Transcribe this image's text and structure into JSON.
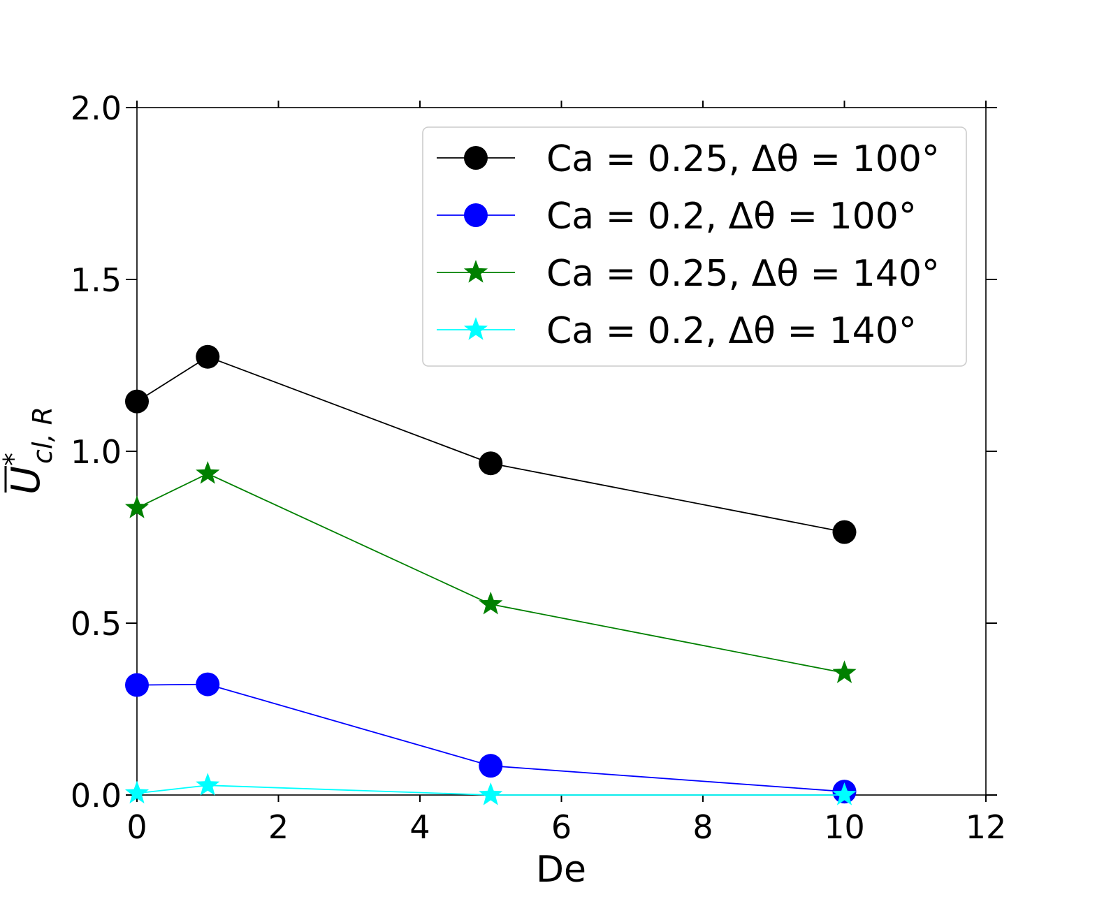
{
  "chart_data": {
    "type": "line",
    "title": "",
    "xlabel": "De",
    "ylabel": {
      "base": "U",
      "superscript": "*",
      "subscript": "cl, R"
    },
    "xlim": [
      0,
      12
    ],
    "ylim": [
      0,
      2
    ],
    "xticks": [
      0,
      2,
      4,
      6,
      8,
      10,
      12
    ],
    "yticks": [
      0,
      0.5,
      1,
      1.5,
      2
    ],
    "xtick_labels": [
      "0",
      "2",
      "4",
      "6",
      "8",
      "10",
      "12"
    ],
    "ytick_labels": [
      "0.0",
      "0.5",
      "1.0",
      "1.5",
      "2.0"
    ],
    "grid": false,
    "legend_position": "top-right",
    "series": [
      {
        "name": "Ca = 0.25, Δθ = 100°",
        "color": "#000000",
        "marker": "circle",
        "x": [
          0,
          1,
          5,
          10
        ],
        "y": [
          1.145,
          1.275,
          0.965,
          0.765
        ]
      },
      {
        "name": "Ca = 0.2, Δθ = 100°",
        "color": "#0000ff",
        "marker": "circle",
        "x": [
          0,
          1,
          5,
          10
        ],
        "y": [
          0.32,
          0.322,
          0.085,
          0.01
        ]
      },
      {
        "name": "Ca = 0.25, Δθ = 140°",
        "color": "#008000",
        "marker": "star",
        "x": [
          0,
          1,
          5,
          10
        ],
        "y": [
          0.835,
          0.935,
          0.555,
          0.355
        ]
      },
      {
        "name": "Ca = 0.2, Δθ = 140°",
        "color": "#00ffff",
        "marker": "star",
        "x": [
          0,
          1,
          5,
          10
        ],
        "y": [
          0.005,
          0.028,
          0.0,
          0.0
        ]
      }
    ]
  }
}
